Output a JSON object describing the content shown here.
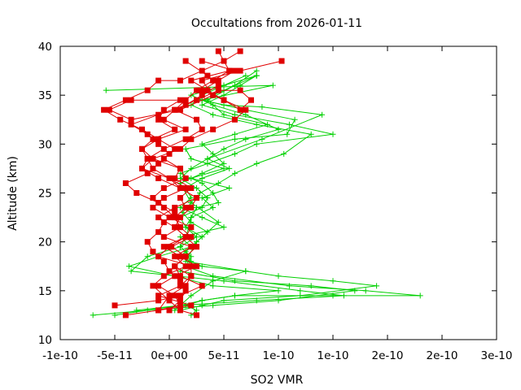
{
  "chart_data": {
    "type": "line",
    "title": "Occultations from 2026-01-11",
    "xlabel": "SO2 VMR",
    "ylabel": "Altitude (km)",
    "xlim": [
      -1e-10,
      3e-10
    ],
    "ylim": [
      10,
      40
    ],
    "xticks": [
      -1e-10,
      -5e-11,
      0,
      5e-11,
      1e-10,
      1.5e-10,
      2e-10,
      2.5e-10,
      3e-10
    ],
    "xtick_labels": [
      "-1e-10",
      "-5e-11",
      "0e+00",
      "5e-11",
      "1e-10",
      "1e-10",
      "2e-10",
      "2e-10",
      "3e-10"
    ],
    "yticks": [
      10,
      15,
      20,
      25,
      30,
      35,
      40
    ],
    "ytick_labels": [
      "10",
      "15",
      "20",
      "25",
      "30",
      "35",
      "40"
    ],
    "grid": false,
    "colors": {
      "green": "#00d000",
      "red": "#e00000"
    },
    "series": [
      {
        "name": "profile-green-1",
        "color": "#00d000",
        "marker": "plus",
        "x": [
          2e-11,
          2.5e-11,
          1.5e-11,
          3e-11,
          6e-11,
          1.5e-10,
          2.3e-10,
          1.8e-10,
          1.1e-10,
          4e-11,
          1.5e-11,
          2e-11,
          1e-11,
          1.5e-11,
          1.8e-11,
          2e-11,
          2.5e-11,
          4.5e-11,
          4e-11,
          3e-11,
          1e-11,
          3.5e-11,
          6e-11,
          8e-11,
          1.5e-10,
          1.1e-10,
          6e-11,
          3e-11,
          5e-11,
          6.5e-11,
          8e-11
        ],
        "y": [
          12.5,
          13.0,
          13.5,
          14.0,
          14.5,
          14.5,
          14.5,
          15.0,
          15.5,
          16.5,
          17.5,
          18.5,
          19.5,
          20.5,
          21.5,
          22.5,
          23.5,
          24.0,
          25.0,
          26.0,
          27.0,
          28.0,
          29.0,
          30.0,
          31.0,
          32.0,
          33.0,
          34.0,
          35.0,
          36.0,
          37.0
        ]
      },
      {
        "name": "profile-green-2",
        "color": "#00d000",
        "marker": "plus",
        "x": [
          -7e-11,
          -2e-11,
          4e-11,
          1e-10,
          1.7e-10,
          1.3e-10,
          6e-11,
          1e-11,
          2e-11,
          1.5e-11,
          2.5e-11,
          3.5e-11,
          2e-11,
          1.2e-11,
          2e-11,
          2.8e-11,
          4.5e-11,
          6e-11,
          8e-11,
          1.05e-10,
          1.3e-10,
          8e-11,
          4e-11,
          2e-11,
          3e-11,
          5e-11,
          8e-11
        ],
        "y": [
          12.5,
          13.0,
          13.5,
          14.0,
          15.0,
          15.5,
          16.0,
          17.0,
          18.0,
          19.0,
          20.0,
          21.0,
          22.0,
          23.0,
          24.0,
          25.0,
          26.0,
          27.0,
          28.0,
          29.0,
          31.0,
          32.0,
          33.0,
          34.0,
          35.0,
          36.0,
          37.0
        ]
      },
      {
        "name": "profile-green-3",
        "color": "#00d000",
        "marker": "plus",
        "x": [
          -5e-11,
          1e-11,
          8e-11,
          1.6e-10,
          1.2e-10,
          5e-11,
          -3.5e-11,
          -2e-11,
          1e-11,
          2.5e-11,
          1.5e-11,
          1e-11,
          3e-11,
          3.5e-11,
          2.5e-11,
          1e-11,
          2e-11,
          3.5e-11,
          5e-11,
          7e-11,
          1e-10,
          7e-11,
          4e-11,
          2e-11,
          5e-11,
          7e-11
        ],
        "y": [
          12.5,
          13.5,
          14.0,
          14.5,
          15.0,
          16.0,
          17.0,
          18.5,
          19.5,
          20.5,
          21.5,
          22.5,
          23.5,
          24.5,
          25.5,
          26.5,
          27.5,
          28.5,
          29.5,
          30.5,
          31.5,
          33.0,
          34.0,
          35.0,
          36.0,
          37.0
        ]
      },
      {
        "name": "profile-green-4",
        "color": "#00d000",
        "marker": "plus",
        "x": [
          1e-11,
          3e-11,
          5e-11,
          1.2e-10,
          1.9e-10,
          1.5e-10,
          1e-10,
          7e-11,
          3e-11,
          1e-11,
          2e-11,
          3e-11,
          1.5e-11,
          2e-11,
          4e-11,
          3e-11,
          5.5e-11,
          2e-11,
          5e-11,
          2e-11,
          1.5e-11,
          6e-11,
          1.08e-10,
          1.15e-10,
          7e-11,
          3e-11,
          5e-11,
          8e-11
        ],
        "y": [
          13.0,
          13.5,
          14.0,
          14.5,
          15.5,
          16.0,
          16.5,
          17.0,
          17.5,
          18.5,
          19.5,
          20.5,
          21.5,
          22.5,
          23.5,
          24.5,
          25.5,
          26.5,
          27.5,
          28.5,
          29.5,
          30.5,
          31.0,
          32.5,
          33.5,
          34.5,
          35.5,
          37.0
        ]
      },
      {
        "name": "profile-green-5",
        "color": "#00d000",
        "marker": "plus",
        "x": [
          -3e-11,
          1e-11,
          3e-11,
          6e-11,
          1e-10,
          4e-11,
          5e-12,
          -3.7e-11,
          -1e-11,
          2e-11,
          1e-11,
          5e-11,
          3e-11,
          1e-11,
          2e-11,
          1.5e-11,
          3e-11,
          5.5e-11,
          3.5e-11,
          8.5e-11,
          1.4e-10,
          8.5e-11,
          5e-11,
          3e-11,
          9.5e-11,
          -5.8e-11
        ],
        "y": [
          13.0,
          13.5,
          14.0,
          14.5,
          15.0,
          15.5,
          16.5,
          17.5,
          18.5,
          19.5,
          20.5,
          21.5,
          22.5,
          23.5,
          24.5,
          25.5,
          26.5,
          27.5,
          28.5,
          30.5,
          33.0,
          33.8,
          34.0,
          34.5,
          36.0,
          35.5
        ]
      },
      {
        "name": "profile-green-6",
        "color": "#00d000",
        "marker": "plus",
        "x": [
          5e-12,
          2e-11,
          4e-11,
          7e-11,
          1.5e-11,
          2.5e-11,
          4.5e-11,
          2e-11,
          1e-11,
          3e-11,
          5e-11,
          4e-11,
          3e-11,
          6e-11,
          9e-11,
          5e-11,
          3.5e-11,
          6e-11,
          8e-11
        ],
        "y": [
          13.0,
          14.5,
          16.0,
          17.0,
          18.0,
          20.0,
          22.0,
          24.0,
          26.0,
          27.0,
          28.0,
          29.0,
          30.0,
          31.0,
          32.0,
          33.0,
          34.5,
          36.0,
          37.5
        ]
      },
      {
        "name": "profile-red-1",
        "color": "#e00000",
        "marker": "square",
        "x": [
          -4e-11,
          2e-11,
          -1e-11,
          1e-11,
          2e-11,
          5e-12,
          1.5e-11,
          2e-12,
          2e-11,
          1e-11,
          5e-12,
          1.5e-11,
          1e-11,
          2e-11,
          5e-12,
          1e-11,
          -1.5e-11,
          -2.5e-11,
          -1.5e-11,
          5e-12,
          -1e-11,
          -5e-12,
          1e-11,
          -3.5e-11,
          -5.5e-11,
          -3.5e-11,
          1e-11,
          4e-11,
          3e-11,
          6.5e-11,
          1.03e-10
        ],
        "y": [
          12.5,
          13.5,
          14.5,
          15.5,
          16.5,
          17.5,
          18.5,
          19.5,
          20.5,
          21.5,
          22.5,
          23.5,
          24.5,
          25.5,
          26.5,
          27.5,
          28.5,
          29.5,
          30.5,
          31.5,
          32.5,
          33.5,
          34.5,
          34.5,
          33.5,
          32.5,
          33.5,
          35.0,
          36.5,
          37.5,
          38.5
        ]
      },
      {
        "name": "profile-red-2",
        "color": "#e00000",
        "marker": "square",
        "x": [
          -5e-11,
          -1e-11,
          1e-11,
          3e-11,
          1e-11,
          5e-12,
          1.5e-11,
          2.5e-11,
          1.5e-11,
          5e-12,
          1e-11,
          2e-11,
          2.5e-11,
          1e-11,
          0.0,
          -1.5e-11,
          -2e-11,
          -2.5e-11,
          -1e-11,
          -2.5e-11,
          -4.5e-11,
          -6e-11,
          -4e-11,
          -2e-11,
          -1e-11,
          1e-11,
          3e-11,
          5e-11,
          6.5e-11
        ],
        "y": [
          13.5,
          14.0,
          14.5,
          15.5,
          16.5,
          17.5,
          18.5,
          19.5,
          20.5,
          21.5,
          22.5,
          23.5,
          24.5,
          25.5,
          26.5,
          27.5,
          28.5,
          29.5,
          30.5,
          31.5,
          32.5,
          33.5,
          34.5,
          35.5,
          36.5,
          36.5,
          37.5,
          38.5,
          39.5
        ]
      },
      {
        "name": "profile-red-3",
        "color": "#e00000",
        "marker": "square",
        "x": [
          -1e-11,
          0.0,
          1.5e-11,
          2e-11,
          2e-11,
          -1e-11,
          0.0,
          1.5e-11,
          2e-11,
          0.0,
          -1.5e-11,
          -5e-12,
          1.5e-11,
          0.0,
          -2.5e-11,
          -2e-11,
          -5e-12,
          1.5e-11,
          3e-11,
          2.5e-11,
          5e-12,
          2.5e-11,
          4.5e-11,
          6.5e-11,
          7.5e-11,
          6.5e-11,
          5e-11,
          3.5e-11,
          2e-11,
          5.5e-11
        ],
        "y": [
          13.0,
          14.5,
          15.5,
          16.5,
          17.5,
          18.5,
          19.5,
          20.5,
          21.5,
          22.5,
          23.5,
          24.5,
          25.5,
          26.5,
          27.5,
          28.5,
          29.5,
          30.5,
          31.5,
          32.5,
          33.5,
          34.5,
          35.5,
          35.5,
          34.5,
          33.5,
          34.5,
          35.5,
          36.5,
          37.5
        ]
      },
      {
        "name": "profile-red-4",
        "color": "#e00000",
        "marker": "square",
        "x": [
          -1e-11,
          1e-11,
          5e-12,
          -1e-11,
          5e-12,
          2.5e-11,
          1e-11,
          -5e-12,
          1.5e-11,
          5e-12,
          -1e-11,
          5e-12,
          2.5e-11,
          1e-11,
          -1e-11,
          -2.5e-11,
          -1.5e-11,
          1e-11,
          2e-11,
          4e-11,
          6e-11,
          7e-11,
          5e-11,
          3e-11,
          4.5e-11,
          6e-11,
          3e-11
        ],
        "y": [
          13.0,
          13.5,
          14.5,
          15.5,
          16.5,
          17.5,
          18.5,
          19.5,
          20.5,
          21.5,
          22.5,
          23.5,
          24.5,
          25.5,
          26.5,
          27.5,
          28.5,
          29.5,
          30.5,
          31.5,
          32.5,
          33.5,
          34.5,
          35.5,
          36.5,
          37.5,
          38.5
        ]
      },
      {
        "name": "profile-red-5",
        "color": "#e00000",
        "marker": "square",
        "x": [
          2.5e-11,
          1e-11,
          0.0,
          -1.5e-11,
          -5e-12,
          1.5e-11,
          5e-12,
          2e-11,
          -5e-12,
          1e-11,
          5e-12,
          -5e-12,
          -1.5e-11,
          -5e-12,
          1.5e-11,
          1e-11,
          -5e-12,
          5e-12,
          -1e-11,
          1.5e-11,
          -5e-12,
          5e-12,
          1.5e-11,
          2.5e-11,
          4e-11,
          5.5e-11,
          4.5e-11
        ],
        "y": [
          12.5,
          13.0,
          14.0,
          15.5,
          16.5,
          17.5,
          18.5,
          19.5,
          20.5,
          21.5,
          22.5,
          23.5,
          24.5,
          25.5,
          26.5,
          27.5,
          28.5,
          29.5,
          30.5,
          31.5,
          32.5,
          33.5,
          34.5,
          35.5,
          36.5,
          37.5,
          39.5
        ]
      },
      {
        "name": "profile-red-6",
        "color": "#e00000",
        "marker": "square",
        "x": [
          0.0,
          1e-11,
          1.5e-11,
          1e-11,
          0.0,
          -5e-12,
          -1.5e-11,
          -2e-11,
          -1e-11,
          -5e-12,
          5e-12,
          -1e-11,
          -3e-11,
          -4e-11,
          -2e-11,
          -1e-11,
          0.0,
          -1e-11,
          -2e-11,
          -3.5e-11,
          -1e-11,
          1.5e-11,
          3e-11,
          4.5e-11,
          3.5e-11,
          1.5e-11
        ],
        "y": [
          13.0,
          14.0,
          15.0,
          16.0,
          17.0,
          18.0,
          19.0,
          20.0,
          21.0,
          22.0,
          23.0,
          24.0,
          25.0,
          26.0,
          27.0,
          28.0,
          29.0,
          30.0,
          31.0,
          32.0,
          33.0,
          34.0,
          35.0,
          36.0,
          37.0,
          38.5
        ]
      }
    ]
  }
}
